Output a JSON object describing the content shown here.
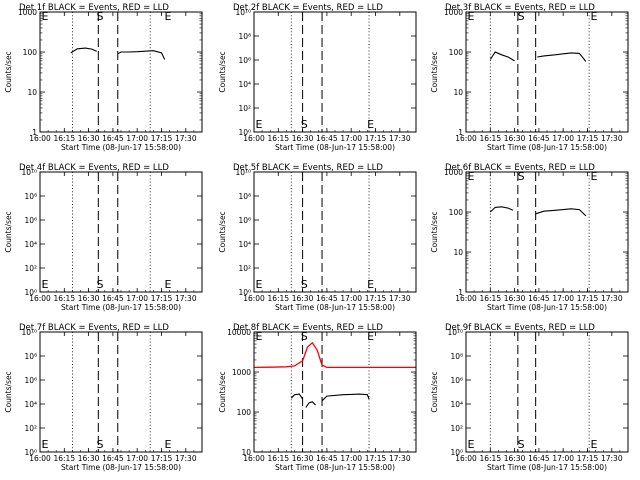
{
  "page": {
    "background": "#ffffff",
    "colors": {
      "events": "#000000",
      "lld": "#ff0000",
      "frame": "#000000"
    }
  },
  "chart_data": [
    {
      "type": "line",
      "title": "Det 1f BLACK = Events, RED = LLD",
      "xlabel": "Start Time (08-Jun-17 15:58:00)",
      "ylabel": "Counts/sec",
      "yscale": "log",
      "ylim": [
        1,
        1000
      ],
      "ytick_labels": [
        "1",
        "10",
        "100",
        "1000"
      ],
      "xlim": [
        "16:00",
        "17:40"
      ],
      "xtick_labels": [
        "16:00",
        "16:15",
        "16:30",
        "16:45",
        "17:00",
        "17:15",
        "17:30"
      ],
      "markers": [
        {
          "label": "E",
          "time": "15:59"
        },
        {
          "label": "S",
          "time": "16:37"
        },
        {
          "label": "E",
          "time": "17:19"
        }
      ],
      "dotted_lines": [
        "16:20",
        "17:08"
      ],
      "dashed_lines": [
        "16:36",
        "16:48"
      ],
      "series": [
        {
          "name": "Events",
          "color": "#000000",
          "segments": [
            {
              "x": [
                "16:19",
                "16:23",
                "16:28",
                "16:32",
                "16:35"
              ],
              "y": [
                95,
                120,
                125,
                118,
                105
              ]
            },
            {
              "x": [
                "16:48",
                "16:50",
                "16:55",
                "17:00",
                "17:05",
                "17:10",
                "17:15",
                "17:17"
              ],
              "y": [
                90,
                100,
                100,
                102,
                105,
                108,
                95,
                65
              ]
            }
          ]
        }
      ]
    },
    {
      "type": "line",
      "title": "Det 2f BLACK = Events, RED = LLD",
      "xlabel": "Start Time (08-Jun-17 15:58:00)",
      "ylabel": "Counts/sec",
      "yscale": "log",
      "ylim": [
        1,
        10000000000
      ],
      "ytick_labels": [
        "10⁰",
        "10²",
        "10⁴",
        "10⁶",
        "10⁸",
        "10¹⁰"
      ],
      "xlim": [
        "16:00",
        "17:40"
      ],
      "xtick_labels": [
        "16:00",
        "16:15",
        "16:30",
        "16:45",
        "17:00",
        "17:15",
        "17:30"
      ],
      "markers": [
        {
          "label": "E",
          "time": "15:59"
        },
        {
          "label": "S",
          "time": "16:31"
        },
        {
          "label": "E",
          "time": "17:12"
        }
      ],
      "dotted_lines": [
        "16:23",
        "17:11"
      ],
      "dashed_lines": [
        "16:30",
        "16:42"
      ],
      "series": []
    },
    {
      "type": "line",
      "title": "Det 3f BLACK = Events, RED = LLD",
      "xlabel": "Start Time (08-Jun-17 15:58:00)",
      "ylabel": "Counts/sec",
      "yscale": "log",
      "ylim": [
        1,
        1000
      ],
      "ytick_labels": [
        "1",
        "10",
        "100",
        "1000"
      ],
      "xlim": [
        "16:00",
        "17:40"
      ],
      "xtick_labels": [
        "16:00",
        "16:15",
        "16:30",
        "16:45",
        "17:00",
        "17:15",
        "17:30"
      ],
      "markers": [
        {
          "label": "E",
          "time": "15:59"
        },
        {
          "label": "S",
          "time": "16:34"
        },
        {
          "label": "E",
          "time": "17:19"
        }
      ],
      "dotted_lines": [
        "16:15",
        "17:16"
      ],
      "dashed_lines": [
        "16:32",
        "16:43"
      ],
      "series": [
        {
          "name": "Events",
          "color": "#000000",
          "segments": [
            {
              "x": [
                "16:15",
                "16:18",
                "16:22",
                "16:26",
                "16:30"
              ],
              "y": [
                65,
                100,
                85,
                75,
                60
              ]
            },
            {
              "x": [
                "16:44",
                "16:48",
                "16:55",
                "17:00",
                "17:05",
                "17:10",
                "17:14"
              ],
              "y": [
                75,
                80,
                85,
                90,
                95,
                92,
                58
              ]
            }
          ]
        }
      ]
    },
    {
      "type": "line",
      "title": "Det 4f BLACK = Events, RED = LLD",
      "xlabel": "Start Time (08-Jun-17 15:58:00)",
      "ylabel": "Counts/sec",
      "yscale": "log",
      "ylim": [
        1,
        10000000000
      ],
      "ytick_labels": [
        "10⁰",
        "10²",
        "10⁴",
        "10⁶",
        "10⁸",
        "10¹⁰"
      ],
      "xlim": [
        "16:00",
        "17:40"
      ],
      "xtick_labels": [
        "16:00",
        "16:15",
        "16:30",
        "16:45",
        "17:00",
        "17:15",
        "17:30"
      ],
      "markers": [
        {
          "label": "E",
          "time": "15:59"
        },
        {
          "label": "S",
          "time": "16:37"
        },
        {
          "label": "E",
          "time": "17:19"
        }
      ],
      "dotted_lines": [
        "16:20",
        "17:08"
      ],
      "dashed_lines": [
        "16:36",
        "16:48"
      ],
      "series": []
    },
    {
      "type": "line",
      "title": "Det 5f BLACK = Events, RED = LLD",
      "xlabel": "Start Time (08-Jun-17 15:58:00)",
      "ylabel": "Counts/sec",
      "yscale": "log",
      "ylim": [
        1,
        10000000000
      ],
      "ytick_labels": [
        "10⁰",
        "10²",
        "10⁴",
        "10⁶",
        "10⁸",
        "10¹⁰"
      ],
      "xlim": [
        "16:00",
        "17:40"
      ],
      "xtick_labels": [
        "16:00",
        "16:15",
        "16:30",
        "16:45",
        "17:00",
        "17:15",
        "17:30"
      ],
      "markers": [
        {
          "label": "E",
          "time": "15:59"
        },
        {
          "label": "S",
          "time": "16:31"
        },
        {
          "label": "E",
          "time": "17:12"
        }
      ],
      "dotted_lines": [
        "16:23",
        "17:11"
      ],
      "dashed_lines": [
        "16:30",
        "16:42"
      ],
      "series": []
    },
    {
      "type": "line",
      "title": "Det 6f BLACK = Events, RED = LLD",
      "xlabel": "Start Time (08-Jun-17 15:58:00)",
      "ylabel": "Counts/sec",
      "yscale": "log",
      "ylim": [
        1,
        1000
      ],
      "ytick_labels": [
        "1",
        "10",
        "100",
        "1000"
      ],
      "xlim": [
        "16:00",
        "17:40"
      ],
      "xtick_labels": [
        "16:00",
        "16:15",
        "16:30",
        "16:45",
        "17:00",
        "17:15",
        "17:30"
      ],
      "markers": [
        {
          "label": "E",
          "time": "15:59"
        },
        {
          "label": "S",
          "time": "16:34"
        },
        {
          "label": "E",
          "time": "17:19"
        }
      ],
      "dotted_lines": [
        "16:15",
        "17:16"
      ],
      "dashed_lines": [
        "16:32",
        "16:43"
      ],
      "series": [
        {
          "name": "Events",
          "color": "#000000",
          "segments": [
            {
              "x": [
                "16:15",
                "16:18",
                "16:22",
                "16:26",
                "16:29"
              ],
              "y": [
                100,
                130,
                135,
                125,
                110
              ]
            },
            {
              "x": [
                "16:43",
                "16:48",
                "16:55",
                "17:00",
                "17:05",
                "17:10",
                "17:14"
              ],
              "y": [
                90,
                105,
                110,
                115,
                120,
                115,
                80
              ]
            }
          ]
        }
      ]
    },
    {
      "type": "line",
      "title": "Det 7f BLACK = Events, RED = LLD",
      "xlabel": "Start Time (08-Jun-17 15:58:00)",
      "ylabel": "Counts/sec",
      "yscale": "log",
      "ylim": [
        1,
        10000000000
      ],
      "ytick_labels": [
        "10⁰",
        "10²",
        "10⁴",
        "10⁶",
        "10⁸",
        "10¹⁰"
      ],
      "xlim": [
        "16:00",
        "17:40"
      ],
      "xtick_labels": [
        "16:00",
        "16:15",
        "16:30",
        "16:45",
        "17:00",
        "17:15",
        "17:30"
      ],
      "markers": [
        {
          "label": "E",
          "time": "15:59"
        },
        {
          "label": "S",
          "time": "16:37"
        },
        {
          "label": "E",
          "time": "17:19"
        }
      ],
      "dotted_lines": [
        "16:20",
        "17:08"
      ],
      "dashed_lines": [
        "16:36",
        "16:48"
      ],
      "series": []
    },
    {
      "type": "line",
      "title": "Det 8f BLACK = Events, RED = LLD",
      "xlabel": "Start Time (08-Jun-17 15:58:00)",
      "ylabel": "Counts/sec",
      "yscale": "log",
      "ylim": [
        10,
        10000
      ],
      "ytick_labels": [
        "10",
        "100",
        "1000",
        "10000"
      ],
      "xlim": [
        "16:00",
        "17:40"
      ],
      "xtick_labels": [
        "16:00",
        "16:15",
        "16:30",
        "16:45",
        "17:00",
        "17:15",
        "17:30"
      ],
      "markers": [
        {
          "label": "E",
          "time": "15:59"
        },
        {
          "label": "S",
          "time": "16:31"
        },
        {
          "label": "E",
          "time": "17:12"
        }
      ],
      "dotted_lines": [
        "16:23",
        "17:11"
      ],
      "dashed_lines": [
        "16:30",
        "16:42"
      ],
      "series": [
        {
          "name": "LLD",
          "color": "#ff0000",
          "segments": [
            {
              "x": [
                "16:00",
                "16:10",
                "16:20",
                "16:25",
                "16:30",
                "16:33",
                "16:36",
                "16:39",
                "16:42",
                "16:45",
                "17:00",
                "17:20",
                "17:40"
              ],
              "y": [
                1300,
                1320,
                1350,
                1420,
                1900,
                4200,
                5400,
                3500,
                1500,
                1300,
                1300,
                1300,
                1300
              ]
            }
          ]
        },
        {
          "name": "Events",
          "color": "#000000",
          "segments": [
            {
              "x": [
                "16:23",
                "16:25",
                "16:28",
                "16:30"
              ],
              "y": [
                220,
                270,
                280,
                210
              ]
            },
            {
              "x": [
                "16:32",
                "16:34",
                "16:36",
                "16:38"
              ],
              "y": [
                130,
                170,
                180,
                150
              ]
            },
            {
              "x": [
                "16:42",
                "16:45",
                "16:55",
                "17:00",
                "17:05",
                "17:10",
                "17:11"
              ],
              "y": [
                190,
                250,
                270,
                275,
                280,
                270,
                210
              ]
            }
          ]
        }
      ]
    },
    {
      "type": "line",
      "title": "Det 9f BLACK = Events, RED = LLD",
      "xlabel": "Start Time (08-Jun-17 15:58:00)",
      "ylabel": "Counts/sec",
      "yscale": "log",
      "ylim": [
        1,
        10000000000
      ],
      "ytick_labels": [
        "10⁰",
        "10²",
        "10⁴",
        "10⁶",
        "10⁸",
        "10¹⁰"
      ],
      "xlim": [
        "16:00",
        "17:40"
      ],
      "xtick_labels": [
        "16:00",
        "16:15",
        "16:30",
        "16:45",
        "17:00",
        "17:15",
        "17:30"
      ],
      "markers": [
        {
          "label": "E",
          "time": "15:59"
        },
        {
          "label": "S",
          "time": "16:34"
        },
        {
          "label": "E",
          "time": "17:19"
        }
      ],
      "dotted_lines": [
        "16:15",
        "17:16"
      ],
      "dashed_lines": [
        "16:32",
        "16:43"
      ],
      "series": []
    }
  ]
}
